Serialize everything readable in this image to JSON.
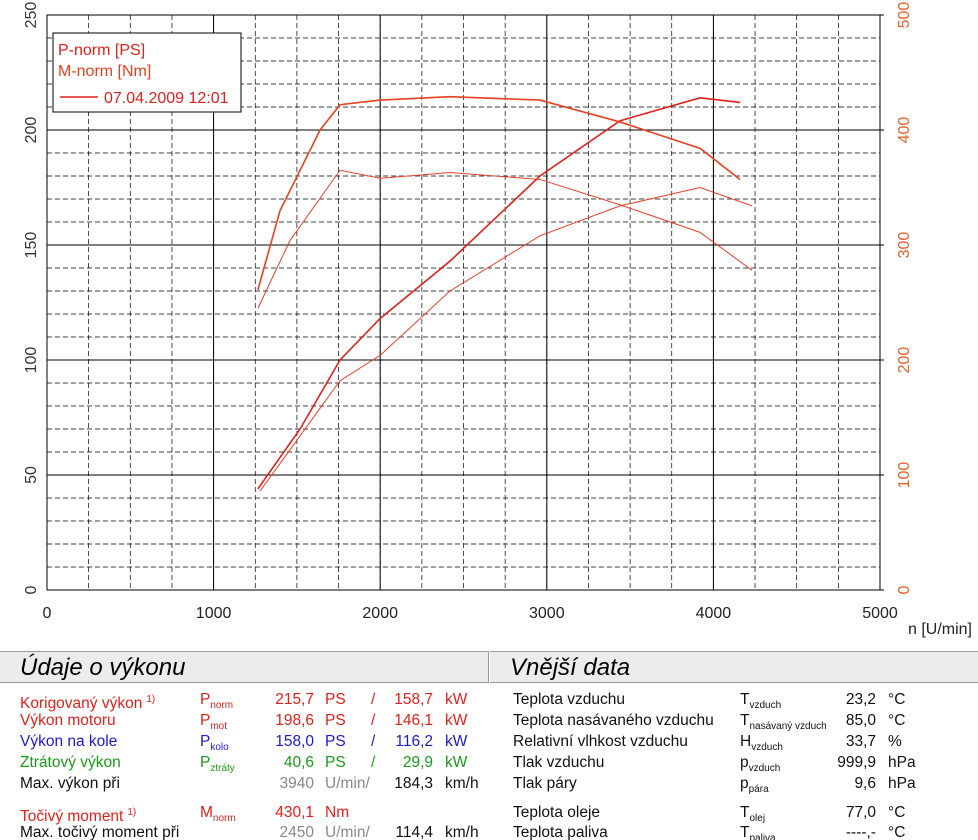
{
  "chart_data": {
    "type": "line",
    "xlim": [
      0,
      5000
    ],
    "xticks": [
      0,
      1000,
      2000,
      3000,
      4000,
      5000
    ],
    "x_label": "n [U/min]",
    "ylim": [
      0,
      250
    ],
    "yticks": [
      0,
      50,
      100,
      150,
      200,
      250
    ],
    "y2lim": [
      0,
      500
    ],
    "y2ticks": [
      0,
      100,
      200,
      300,
      400,
      500
    ],
    "y2_color": "#e8602c",
    "grid": true,
    "legend_position": "upper left",
    "run_label": "07.04.2009 12:01",
    "series": [
      {
        "name": "P-norm [PS]",
        "color": "#e0201b",
        "width": 1.6,
        "x": [
          1266,
          1519,
          1759,
          1999,
          2419,
          2959,
          3439,
          3920,
          4160
        ],
        "values": [
          44,
          70,
          100,
          118,
          143,
          180,
          204,
          214,
          212
        ]
      },
      {
        "name": "M-norm [Nm]",
        "color": "#e8401e",
        "width": 1.6,
        "axis": "y2",
        "x": [
          1266,
          1399,
          1639,
          1759,
          1999,
          2419,
          2959,
          3439,
          3920,
          4160
        ],
        "values": [
          261,
          330,
          400,
          422,
          426,
          429,
          426,
          407,
          384,
          357
        ]
      },
      {
        "color": "#e8402a",
        "width": 1,
        "x": [
          1279,
          1759,
          1999,
          2419,
          2959,
          3439,
          3920,
          4232
        ],
        "values": [
          43,
          91,
          102,
          130,
          154,
          167,
          175,
          167
        ]
      },
      {
        "color": "#e8402a",
        "width": 1,
        "axis": "y2",
        "x": [
          1266,
          1459,
          1759,
          1999,
          2419,
          2959,
          3439,
          3920,
          4232
        ],
        "values": [
          245,
          304,
          365,
          358,
          363,
          357,
          335,
          311,
          278
        ]
      }
    ]
  },
  "performance": {
    "title": "Údaje o výkonu",
    "rows": [
      {
        "color": "#e0201b",
        "label": "Korigovaný výkon",
        "note": "1)",
        "symbol": "P",
        "sub": "norm",
        "value": "215,7",
        "unit": "PS",
        "sep": "/",
        "value2": "158,7",
        "unit2": "kW"
      },
      {
        "color": "#e0201b",
        "label": "Výkon motoru",
        "symbol": "P",
        "sub": "mot",
        "value": "198,6",
        "unit": "PS",
        "sep": "/",
        "value2": "146,1",
        "unit2": "kW"
      },
      {
        "color": "#1a1ad0",
        "label": "Výkon na kole",
        "symbol": "P",
        "sub": "kolo",
        "value": "158,0",
        "unit": "PS",
        "sep": "/",
        "value2": "116,2",
        "unit2": "kW"
      },
      {
        "color": "#1a9a1a",
        "label": "Ztrátový výkon",
        "symbol": "P",
        "sub": "ztráty",
        "value": "40,6",
        "unit": "PS",
        "sep": "/",
        "value2": "29,9",
        "unit2": "kW"
      },
      {
        "color": "#111111",
        "value_color": "#888888",
        "label": "Max. výkon při",
        "value": "3940",
        "unit": "U/min/",
        "value2": "184,3",
        "unit2": "km/h"
      },
      {
        "color": "#e0201b",
        "label": "Točivý moment",
        "note": "1)",
        "symbol": "M",
        "sub": "norm",
        "value": "430,1",
        "unit": "Nm"
      },
      {
        "color": "#111111",
        "value_color": "#888888",
        "label": "Max. točivý moment při",
        "value": "2450",
        "unit": "U/min/",
        "value2": "114,4",
        "unit2": "km/h"
      }
    ]
  },
  "external": {
    "title": "Vnější data",
    "rows": [
      {
        "label": "Teplota vzduchu",
        "symbol": "T",
        "sub": "vzduch",
        "value": "23,2",
        "unit": "°C"
      },
      {
        "label": "Teplota nasávaného vzduchu",
        "symbol": "T",
        "sub": "nasávaný vzduch",
        "value": "85,0",
        "unit": "°C"
      },
      {
        "label": "Relativní vlhkost vzduchu",
        "symbol": "H",
        "sub": "vzduch",
        "value": "33,7",
        "unit": "%"
      },
      {
        "label": "Tlak vzduchu",
        "symbol": "p",
        "sub": "vzduch",
        "value": "999,9",
        "unit": "hPa"
      },
      {
        "label": "Tlak páry",
        "symbol": "p",
        "sub": "pára",
        "value": "9,6",
        "unit": "hPa"
      },
      {
        "label": "Teplota oleje",
        "symbol": "T",
        "sub": "olej",
        "value": "77,0",
        "unit": "°C"
      },
      {
        "label": "Teplota paliva",
        "symbol": "T",
        "sub": "paliva",
        "value": "----,-",
        "unit": "°C"
      }
    ]
  }
}
